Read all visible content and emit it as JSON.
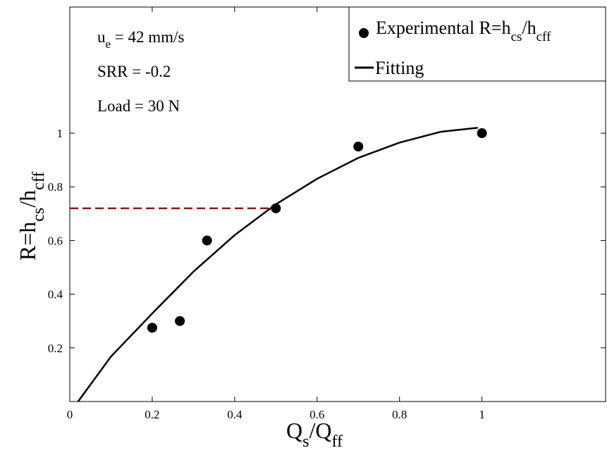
{
  "chart_data": {
    "type": "scatter",
    "xlabel": {
      "main": "Q",
      "sub1": "s",
      "mid": "/Q",
      "sub2": "ff"
    },
    "ylabel": {
      "main": "R=h",
      "sub1": "cs",
      "mid": "/h",
      "sub2": "cff"
    },
    "xlim": [
      0,
      1.3
    ],
    "ylim": [
      0,
      1.47
    ],
    "x_ticks": [
      0,
      0.2,
      0.4,
      0.6,
      0.8,
      1
    ],
    "x_tick_labels": [
      "0",
      "0.2",
      "0.4",
      "0.6",
      "0.8",
      "1"
    ],
    "y_ticks": [
      0.2,
      0.4,
      0.6,
      0.8,
      1
    ],
    "y_tick_labels": [
      "0.2",
      "0.4",
      "0.6",
      "0.8",
      "1"
    ],
    "grid": false,
    "legend_position": "top-right",
    "series": [
      {
        "name": "Experimental R=h_cs/h_cff",
        "kind": "scatter",
        "color": "#000000",
        "x": [
          0.2,
          0.267,
          0.333,
          0.5,
          0.7,
          1.0
        ],
        "y": [
          0.275,
          0.3,
          0.6,
          0.72,
          0.95,
          1.0
        ]
      },
      {
        "name": "Fitting",
        "kind": "line",
        "color": "#000000",
        "x": [
          0.02,
          0.1,
          0.2,
          0.3,
          0.4,
          0.5,
          0.6,
          0.7,
          0.8,
          0.9,
          0.99
        ],
        "y": [
          0.0,
          0.168,
          0.328,
          0.484,
          0.62,
          0.735,
          0.83,
          0.908,
          0.965,
          1.005,
          1.02
        ]
      }
    ],
    "reference_line": {
      "color": "#8b1a1a",
      "y": 0.72,
      "x_from": 0,
      "x_to": 0.5
    },
    "annotations": {
      "line1": {
        "main": "u",
        "sub": "e",
        "rest": " = 42 mm/s"
      },
      "line2": "SRR = -0.2",
      "line3": "Load = 30 N"
    },
    "legend": {
      "item1": {
        "main": "Experimental R=h",
        "sub1": "cs",
        "mid": "/h",
        "sub2": "cff"
      },
      "item2": "Fitting"
    }
  }
}
